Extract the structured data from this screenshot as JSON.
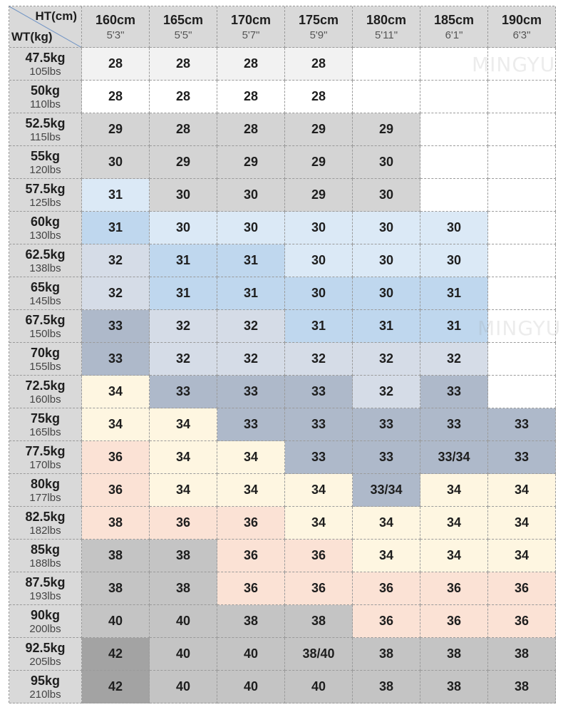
{
  "corner": {
    "ht_label": "HT(cm)",
    "wt_label": "WT(kg)"
  },
  "heights": [
    {
      "cm": "160cm",
      "ft": "5'3\""
    },
    {
      "cm": "165cm",
      "ft": "5'5\""
    },
    {
      "cm": "170cm",
      "ft": "5'7\""
    },
    {
      "cm": "175cm",
      "ft": "5'9\""
    },
    {
      "cm": "180cm",
      "ft": "5'11\""
    },
    {
      "cm": "185cm",
      "ft": "6'1\""
    },
    {
      "cm": "190cm",
      "ft": "6'3\""
    }
  ],
  "weights": [
    {
      "kg": "47.5kg",
      "lbs": "105lbs"
    },
    {
      "kg": "50kg",
      "lbs": "110lbs"
    },
    {
      "kg": "52.5kg",
      "lbs": "115lbs"
    },
    {
      "kg": "55kg",
      "lbs": "120lbs"
    },
    {
      "kg": "57.5kg",
      "lbs": "125lbs"
    },
    {
      "kg": "60kg",
      "lbs": "130lbs"
    },
    {
      "kg": "62.5kg",
      "lbs": "138lbs"
    },
    {
      "kg": "65kg",
      "lbs": "145lbs"
    },
    {
      "kg": "67.5kg",
      "lbs": "150lbs"
    },
    {
      "kg": "70kg",
      "lbs": "155lbs"
    },
    {
      "kg": "72.5kg",
      "lbs": "160lbs"
    },
    {
      "kg": "75kg",
      "lbs": "165lbs"
    },
    {
      "kg": "77.5kg",
      "lbs": "170lbs"
    },
    {
      "kg": "80kg",
      "lbs": "177lbs"
    },
    {
      "kg": "82.5kg",
      "lbs": "182lbs"
    },
    {
      "kg": "85kg",
      "lbs": "188lbs"
    },
    {
      "kg": "87.5kg",
      "lbs": "193lbs"
    },
    {
      "kg": "90kg",
      "lbs": "200lbs"
    },
    {
      "kg": "92.5kg",
      "lbs": "205lbs"
    },
    {
      "kg": "95kg",
      "lbs": "210lbs"
    }
  ],
  "sizes": [
    [
      "28",
      "28",
      "28",
      "28",
      "",
      "",
      ""
    ],
    [
      "28",
      "28",
      "28",
      "28",
      "",
      "",
      ""
    ],
    [
      "29",
      "28",
      "28",
      "29",
      "29",
      "",
      ""
    ],
    [
      "30",
      "29",
      "29",
      "29",
      "30",
      "",
      ""
    ],
    [
      "31",
      "30",
      "30",
      "29",
      "30",
      "",
      ""
    ],
    [
      "31",
      "30",
      "30",
      "30",
      "30",
      "30",
      ""
    ],
    [
      "32",
      "31",
      "31",
      "30",
      "30",
      "30",
      ""
    ],
    [
      "32",
      "31",
      "31",
      "30",
      "30",
      "31",
      ""
    ],
    [
      "33",
      "32",
      "32",
      "31",
      "31",
      "31",
      ""
    ],
    [
      "33",
      "32",
      "32",
      "32",
      "32",
      "32",
      ""
    ],
    [
      "34",
      "33",
      "33",
      "33",
      "32",
      "33",
      ""
    ],
    [
      "34",
      "34",
      "33",
      "33",
      "33",
      "33",
      "33"
    ],
    [
      "36",
      "34",
      "34",
      "33",
      "33",
      "33/34",
      "33"
    ],
    [
      "36",
      "34",
      "34",
      "34",
      "33/34",
      "34",
      "34"
    ],
    [
      "38",
      "36",
      "36",
      "34",
      "34",
      "34",
      "34"
    ],
    [
      "38",
      "38",
      "36",
      "36",
      "34",
      "34",
      "34"
    ],
    [
      "38",
      "38",
      "36",
      "36",
      "36",
      "36",
      "36"
    ],
    [
      "40",
      "40",
      "38",
      "38",
      "36",
      "36",
      "36"
    ],
    [
      "42",
      "40",
      "40",
      "38/40",
      "38",
      "38",
      "38"
    ],
    [
      "42",
      "40",
      "40",
      "40",
      "38",
      "38",
      "38"
    ]
  ],
  "palette": {
    "header_grey": "#d9d9d9",
    "white": "#ffffff",
    "very_light_grey": "#f2f2f2",
    "light_grey": "#d4d4d4",
    "pale_blue": "#dbe9f6",
    "sky_blue": "#bfd7ee",
    "blue_grey_light": "#d5dce7",
    "blue_grey_mid": "#aeb9ca",
    "cream": "#fef6e1",
    "peach": "#fbe2d5",
    "mid_grey": "#c4c4c4",
    "dark_grey": "#a3a3a3"
  },
  "cell_colors": [
    [
      "very_light_grey",
      "very_light_grey",
      "very_light_grey",
      "very_light_grey",
      "white",
      "white",
      "white"
    ],
    [
      "white",
      "white",
      "white",
      "white",
      "white",
      "white",
      "white"
    ],
    [
      "light_grey",
      "light_grey",
      "light_grey",
      "light_grey",
      "light_grey",
      "white",
      "white"
    ],
    [
      "light_grey",
      "light_grey",
      "light_grey",
      "light_grey",
      "light_grey",
      "white",
      "white"
    ],
    [
      "pale_blue",
      "light_grey",
      "light_grey",
      "light_grey",
      "light_grey",
      "white",
      "white"
    ],
    [
      "sky_blue",
      "pale_blue",
      "pale_blue",
      "pale_blue",
      "pale_blue",
      "pale_blue",
      "white"
    ],
    [
      "blue_grey_light",
      "sky_blue",
      "sky_blue",
      "pale_blue",
      "pale_blue",
      "pale_blue",
      "white"
    ],
    [
      "blue_grey_light",
      "sky_blue",
      "sky_blue",
      "sky_blue",
      "sky_blue",
      "sky_blue",
      "white"
    ],
    [
      "blue_grey_mid",
      "blue_grey_light",
      "blue_grey_light",
      "sky_blue",
      "sky_blue",
      "sky_blue",
      "white"
    ],
    [
      "blue_grey_mid",
      "blue_grey_light",
      "blue_grey_light",
      "blue_grey_light",
      "blue_grey_light",
      "blue_grey_light",
      "white"
    ],
    [
      "cream",
      "blue_grey_mid",
      "blue_grey_mid",
      "blue_grey_mid",
      "blue_grey_light",
      "blue_grey_mid",
      "white"
    ],
    [
      "cream",
      "cream",
      "blue_grey_mid",
      "blue_grey_mid",
      "blue_grey_mid",
      "blue_grey_mid",
      "blue_grey_mid"
    ],
    [
      "peach",
      "cream",
      "cream",
      "blue_grey_mid",
      "blue_grey_mid",
      "blue_grey_mid",
      "blue_grey_mid"
    ],
    [
      "peach",
      "cream",
      "cream",
      "cream",
      "blue_grey_mid",
      "cream",
      "cream"
    ],
    [
      "peach",
      "peach",
      "peach",
      "cream",
      "cream",
      "cream",
      "cream"
    ],
    [
      "mid_grey",
      "mid_grey",
      "peach",
      "peach",
      "cream",
      "cream",
      "cream"
    ],
    [
      "mid_grey",
      "mid_grey",
      "peach",
      "peach",
      "peach",
      "peach",
      "peach"
    ],
    [
      "mid_grey",
      "mid_grey",
      "mid_grey",
      "mid_grey",
      "peach",
      "peach",
      "peach"
    ],
    [
      "dark_grey",
      "mid_grey",
      "mid_grey",
      "mid_grey",
      "mid_grey",
      "mid_grey",
      "mid_grey"
    ],
    [
      "dark_grey",
      "mid_grey",
      "mid_grey",
      "mid_grey",
      "mid_grey",
      "mid_grey",
      "mid_grey"
    ]
  ],
  "watermark": {
    "text_top": "MINGYU",
    "text_mid": "MINGYU"
  }
}
